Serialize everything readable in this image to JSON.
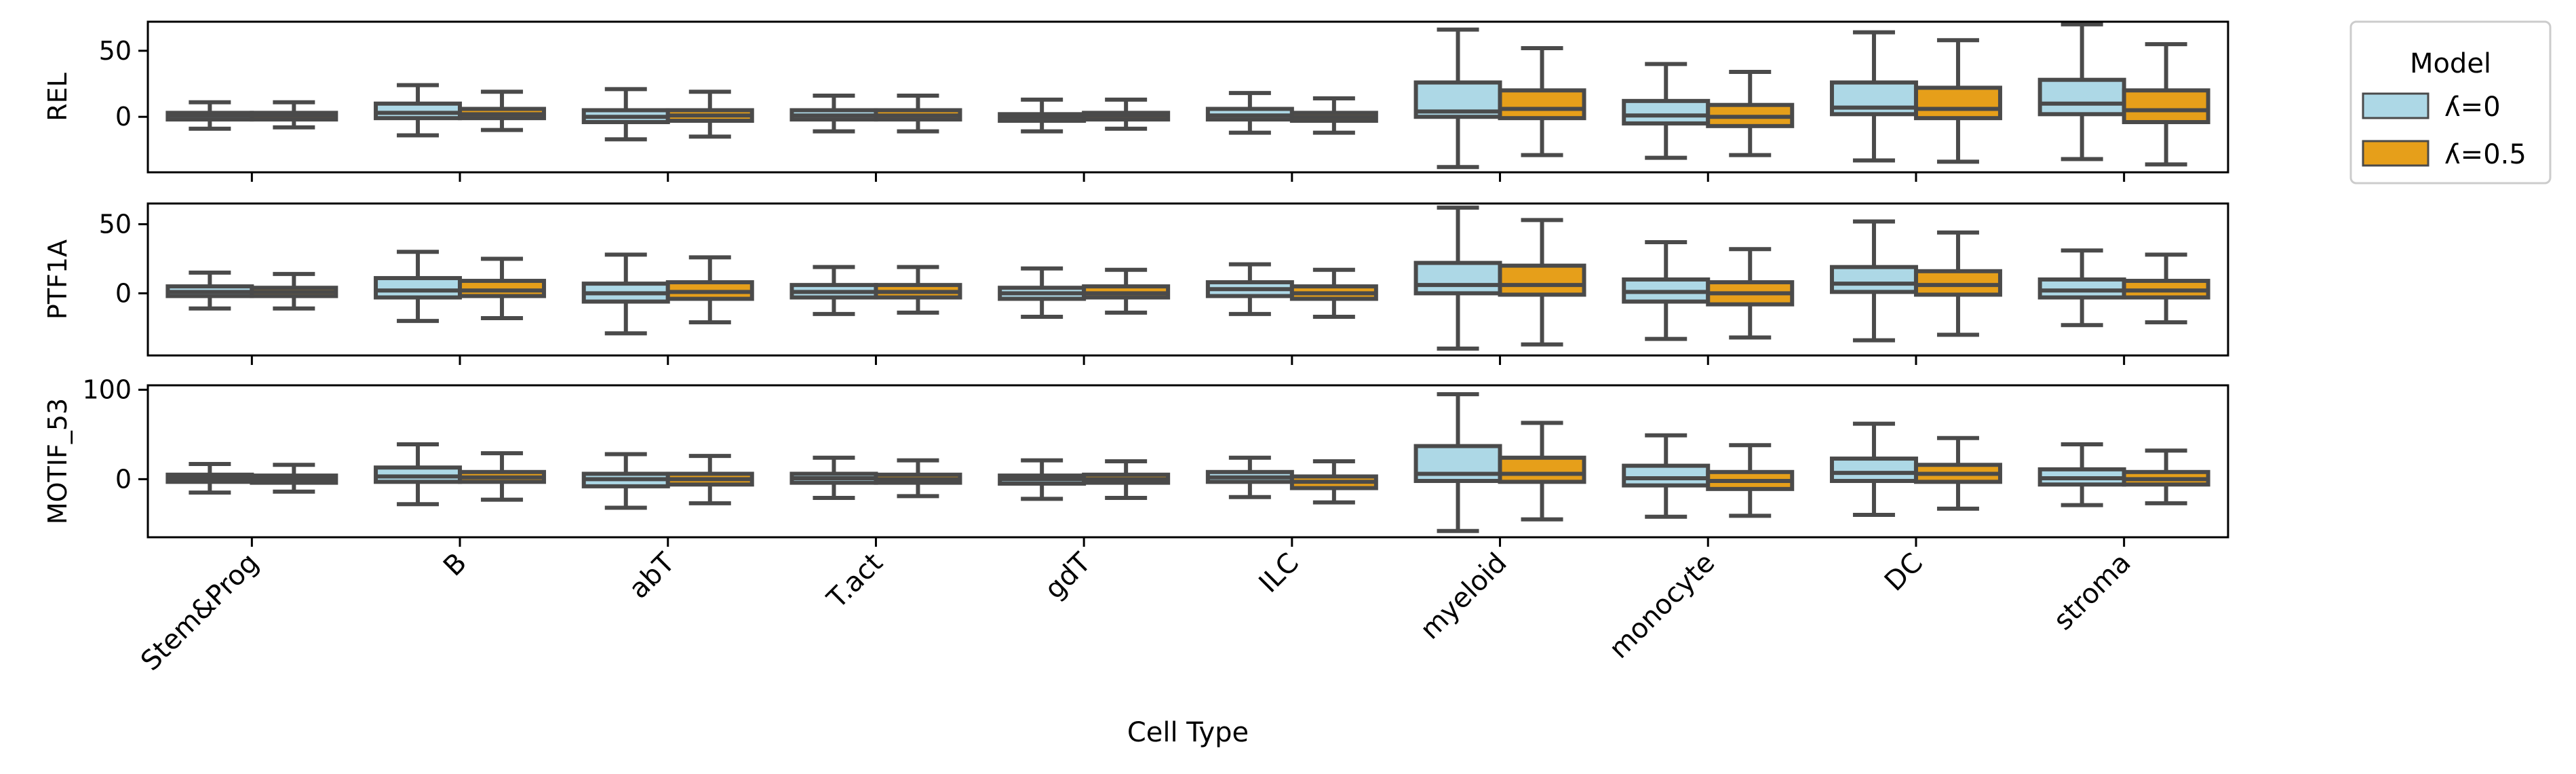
{
  "chart_data": {
    "type": "box",
    "xlabel": "Cell Type",
    "categories": [
      "Stem&Prog",
      "B",
      "abT",
      "T.act",
      "gdT",
      "ILC",
      "myeloid",
      "monocyte",
      "DC",
      "stroma"
    ],
    "legend": {
      "title": "Model",
      "placement": "outside right",
      "entries": [
        {
          "label": "ʎ=0",
          "color": "#add8e6"
        },
        {
          "label": "ʎ=0.5",
          "color": "#e69f1a"
        }
      ]
    },
    "colors": {
      "series0": "#add8e6",
      "series1": "#e69f1a",
      "line": "#4a4a4a"
    },
    "panels": [
      {
        "ylabel": "REL",
        "ylim": [
          -42,
          72
        ],
        "yticks": [
          0,
          50
        ],
        "series": [
          {
            "name": "ʎ=0",
            "boxes": [
              [
                -9,
                -2,
                1,
                3,
                11
              ],
              [
                -14,
                -1,
                3,
                10,
                24
              ],
              [
                -17,
                -4,
                0,
                5,
                21
              ],
              [
                -11,
                -2,
                1,
                5,
                16
              ],
              [
                -11,
                -3,
                0,
                2,
                13
              ],
              [
                -12,
                -2,
                1,
                6,
                18
              ],
              [
                -38,
                0,
                4,
                26,
                66
              ],
              [
                -31,
                -5,
                1,
                12,
                40
              ],
              [
                -33,
                2,
                7,
                26,
                64
              ],
              [
                -32,
                2,
                10,
                28,
                70
              ]
            ]
          },
          {
            "name": "ʎ=0.5",
            "boxes": [
              [
                -8,
                -2,
                1,
                3,
                11
              ],
              [
                -10,
                -1,
                2,
                6,
                19
              ],
              [
                -15,
                -3,
                1,
                5,
                19
              ],
              [
                -11,
                -2,
                1,
                5,
                16
              ],
              [
                -9,
                -2,
                1,
                3,
                13
              ],
              [
                -12,
                -3,
                0,
                3,
                14
              ],
              [
                -29,
                -1,
                6,
                20,
                52
              ],
              [
                -29,
                -7,
                0,
                9,
                34
              ],
              [
                -34,
                -1,
                6,
                22,
                58
              ],
              [
                -36,
                -4,
                5,
                20,
                55
              ]
            ]
          }
        ]
      },
      {
        "ylabel": "PTF1A",
        "ylim": [
          -45,
          65
        ],
        "yticks": [
          0,
          50
        ],
        "series": [
          {
            "name": "ʎ=0",
            "boxes": [
              [
                -11,
                -2,
                1,
                5,
                15
              ],
              [
                -20,
                -3,
                2,
                11,
                30
              ],
              [
                -29,
                -6,
                0,
                7,
                28
              ],
              [
                -15,
                -3,
                1,
                6,
                19
              ],
              [
                -17,
                -4,
                0,
                4,
                18
              ],
              [
                -15,
                -2,
                3,
                8,
                21
              ],
              [
                -40,
                0,
                6,
                22,
                62
              ],
              [
                -33,
                -6,
                1,
                10,
                37
              ],
              [
                -34,
                1,
                7,
                19,
                52
              ],
              [
                -23,
                -3,
                2,
                10,
                31
              ]
            ]
          },
          {
            "name": "ʎ=0.5",
            "boxes": [
              [
                -11,
                -2,
                1,
                4,
                14
              ],
              [
                -18,
                -2,
                2,
                9,
                25
              ],
              [
                -21,
                -4,
                1,
                8,
                26
              ],
              [
                -14,
                -3,
                1,
                6,
                19
              ],
              [
                -14,
                -3,
                0,
                5,
                17
              ],
              [
                -17,
                -4,
                0,
                5,
                17
              ],
              [
                -37,
                -1,
                6,
                20,
                53
              ],
              [
                -32,
                -8,
                0,
                8,
                32
              ],
              [
                -30,
                -1,
                6,
                16,
                44
              ],
              [
                -21,
                -3,
                2,
                9,
                28
              ]
            ]
          }
        ]
      },
      {
        "ylabel": "MOTIF_53",
        "ylim": [
          -65,
          105
        ],
        "yticks": [
          0,
          100
        ],
        "series": [
          {
            "name": "ʎ=0",
            "boxes": [
              [
                -15,
                -3,
                1,
                5,
                17
              ],
              [
                -28,
                -3,
                3,
                13,
                39
              ],
              [
                -32,
                -8,
                0,
                6,
                28
              ],
              [
                -21,
                -4,
                1,
                6,
                24
              ],
              [
                -22,
                -5,
                0,
                4,
                21
              ],
              [
                -20,
                -3,
                2,
                8,
                24
              ],
              [
                -58,
                -2,
                6,
                37,
                95
              ],
              [
                -42,
                -7,
                1,
                15,
                49
              ],
              [
                -40,
                -2,
                7,
                23,
                62
              ],
              [
                -29,
                -6,
                1,
                11,
                39
              ]
            ]
          },
          {
            "name": "ʎ=0.5",
            "boxes": [
              [
                -14,
                -4,
                0,
                4,
                16
              ],
              [
                -23,
                -3,
                2,
                8,
                29
              ],
              [
                -27,
                -6,
                0,
                6,
                26
              ],
              [
                -19,
                -4,
                0,
                5,
                21
              ],
              [
                -21,
                -4,
                0,
                5,
                20
              ],
              [
                -26,
                -10,
                -3,
                3,
                20
              ],
              [
                -45,
                -3,
                6,
                24,
                63
              ],
              [
                -41,
                -11,
                -2,
                8,
                38
              ],
              [
                -33,
                -3,
                6,
                16,
                46
              ],
              [
                -27,
                -6,
                0,
                8,
                32
              ]
            ]
          }
        ]
      }
    ]
  }
}
